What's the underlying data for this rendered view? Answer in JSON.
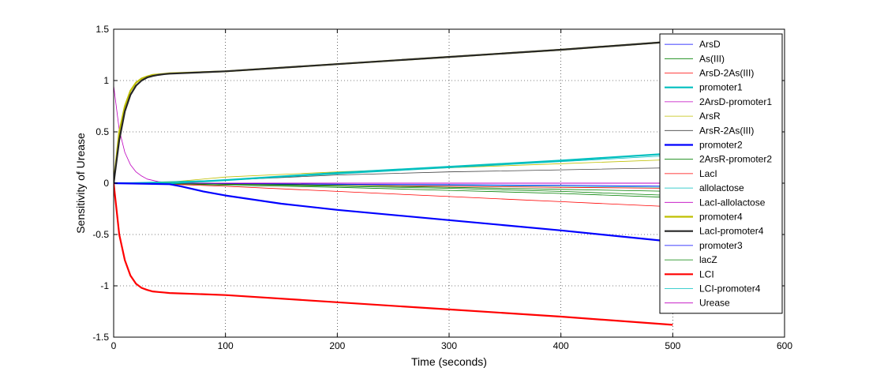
{
  "chart_data": {
    "type": "line",
    "xlabel": "Time (seconds)",
    "ylabel": "Sensitivity of Urease",
    "xlim": [
      0,
      600
    ],
    "ylim": [
      -1.5,
      1.5
    ],
    "xticks": [
      "0",
      "100",
      "200",
      "300",
      "400",
      "500",
      "600"
    ],
    "yticks": [
      "-1.5",
      "-1",
      "-0.5",
      "0",
      "0.5",
      "1",
      "1.5"
    ],
    "grid": true,
    "legend_position": "right",
    "series": [
      {
        "name": "ArsD",
        "color": "#0000ff",
        "width": 0.8,
        "x": [
          0,
          100,
          200,
          300,
          400,
          500
        ],
        "y": [
          0,
          0,
          0,
          0,
          0,
          0
        ]
      },
      {
        "name": "As(III)",
        "color": "#008000",
        "width": 0.8,
        "x": [
          0,
          50,
          100,
          200,
          300,
          400,
          500
        ],
        "y": [
          0,
          0,
          -0.01,
          -0.03,
          -0.05,
          -0.08,
          -0.12
        ]
      },
      {
        "name": "ArsD-2As(III)",
        "color": "#ff0000",
        "width": 0.8,
        "x": [
          0,
          50,
          100,
          200,
          300,
          400,
          500
        ],
        "y": [
          0,
          -0.01,
          -0.03,
          -0.08,
          -0.13,
          -0.18,
          -0.23
        ]
      },
      {
        "name": "promoter1",
        "color": "#00bfbf",
        "width": 2.2,
        "x": [
          0,
          50,
          100,
          200,
          300,
          400,
          500
        ],
        "y": [
          0,
          0,
          0.03,
          0.1,
          0.16,
          0.22,
          0.29
        ]
      },
      {
        "name": "2ArsD-promoter1",
        "color": "#bf00bf",
        "width": 0.8,
        "x": [
          0,
          5,
          10,
          15,
          20,
          25,
          30,
          40,
          50,
          60,
          100,
          200,
          300,
          400,
          500
        ],
        "y": [
          0.95,
          0.52,
          0.3,
          0.18,
          0.11,
          0.07,
          0.04,
          0.015,
          0.005,
          0.001,
          0,
          0,
          0,
          0,
          0
        ]
      },
      {
        "name": "ArsR",
        "color": "#bfbf00",
        "width": 0.8,
        "x": [
          0,
          50,
          100,
          200,
          300,
          400,
          500
        ],
        "y": [
          0,
          0.01,
          0.06,
          0.11,
          0.15,
          0.19,
          0.23
        ]
      },
      {
        "name": "ArsR-2As(III)",
        "color": "#404040",
        "width": 0.8,
        "x": [
          0,
          50,
          100,
          200,
          300,
          400,
          500
        ],
        "y": [
          0,
          0.005,
          0.03,
          0.08,
          0.11,
          0.13,
          0.15
        ]
      },
      {
        "name": "promoter2",
        "color": "#0000ff",
        "width": 2.2,
        "x": [
          0,
          50,
          60,
          80,
          100,
          150,
          200,
          300,
          400,
          500
        ],
        "y": [
          0,
          -0.01,
          -0.03,
          -0.08,
          -0.12,
          -0.2,
          -0.26,
          -0.36,
          -0.46,
          -0.57
        ]
      },
      {
        "name": "2ArsR-promoter2",
        "color": "#008000",
        "width": 0.8,
        "x": [
          0,
          50,
          100,
          200,
          300,
          400,
          500
        ],
        "y": [
          0,
          -0.005,
          -0.02,
          -0.04,
          -0.07,
          -0.1,
          -0.14
        ]
      },
      {
        "name": "LacI",
        "color": "#ff0000",
        "width": 0.8,
        "x": [
          0,
          100,
          200,
          300,
          400,
          500
        ],
        "y": [
          0,
          -0.01,
          -0.02,
          -0.03,
          -0.04,
          -0.05
        ]
      },
      {
        "name": "allolactose",
        "color": "#00bfbf",
        "width": 0.8,
        "x": [
          0,
          100,
          200,
          300,
          400,
          500
        ],
        "y": [
          0,
          -0.005,
          -0.01,
          -0.02,
          -0.03,
          -0.04
        ]
      },
      {
        "name": "LacI-allolactose",
        "color": "#bf00bf",
        "width": 0.8,
        "x": [
          0,
          100,
          200,
          300,
          400,
          500
        ],
        "y": [
          0,
          0,
          0,
          0,
          0,
          0
        ]
      },
      {
        "name": "promoter4",
        "color": "#bfbf00",
        "width": 2.2,
        "x": [
          0,
          5,
          10,
          15,
          20,
          25,
          30,
          35,
          40,
          45,
          50,
          100,
          200,
          300,
          400,
          500
        ],
        "y": [
          0,
          0.5,
          0.75,
          0.9,
          0.98,
          1.02,
          1.04,
          1.055,
          1.06,
          1.065,
          1.07,
          1.09,
          1.16,
          1.23,
          1.3,
          1.38
        ]
      },
      {
        "name": "LacI-promoter4",
        "color": "#262626",
        "width": 2.2,
        "x": [
          0,
          5,
          10,
          15,
          20,
          25,
          30,
          35,
          40,
          45,
          50,
          100,
          200,
          300,
          400,
          500
        ],
        "y": [
          0,
          0.42,
          0.7,
          0.86,
          0.95,
          1.0,
          1.03,
          1.045,
          1.055,
          1.062,
          1.067,
          1.09,
          1.16,
          1.23,
          1.3,
          1.38
        ]
      },
      {
        "name": "promoter3",
        "color": "#0000ff",
        "width": 0.8,
        "x": [
          0,
          100,
          200,
          300,
          400,
          500
        ],
        "y": [
          0,
          -0.005,
          -0.01,
          -0.015,
          -0.02,
          -0.03
        ]
      },
      {
        "name": "lacZ",
        "color": "#008000",
        "width": 0.8,
        "x": [
          0,
          100,
          200,
          300,
          400,
          500
        ],
        "y": [
          0,
          -0.01,
          -0.02,
          -0.04,
          -0.06,
          -0.08
        ]
      },
      {
        "name": "LCI",
        "color": "#ff0000",
        "width": 2.2,
        "x": [
          0,
          5,
          10,
          15,
          20,
          25,
          30,
          35,
          40,
          45,
          50,
          100,
          200,
          300,
          400,
          500
        ],
        "y": [
          0,
          -0.5,
          -0.75,
          -0.9,
          -0.98,
          -1.02,
          -1.04,
          -1.055,
          -1.06,
          -1.065,
          -1.07,
          -1.09,
          -1.16,
          -1.23,
          -1.3,
          -1.38
        ]
      },
      {
        "name": "LCI-promoter4",
        "color": "#00bfbf",
        "width": 0.8,
        "x": [
          0,
          100,
          200,
          300,
          400,
          500
        ],
        "y": [
          0,
          0.03,
          0.09,
          0.15,
          0.21,
          0.27
        ]
      },
      {
        "name": "Urease",
        "color": "#bf00bf",
        "width": 0.8,
        "x": [
          0,
          100,
          200,
          300,
          400,
          500
        ],
        "y": [
          0,
          0,
          0,
          0,
          0,
          0
        ]
      }
    ]
  }
}
